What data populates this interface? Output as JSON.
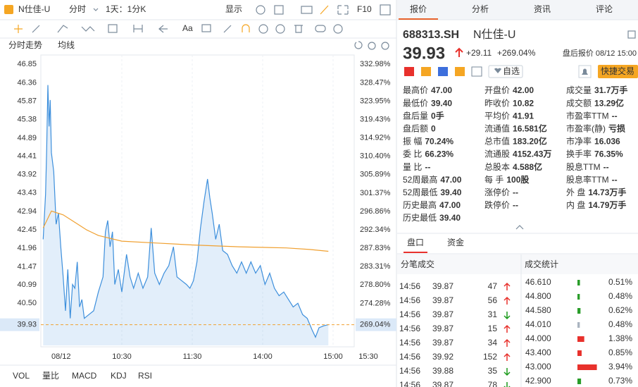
{
  "toolbar": {
    "stock": "N仕佳-U",
    "mode": "分时",
    "period": "1天：1分K",
    "display": "显示",
    "f10": "F10",
    "font": "Aa"
  },
  "chart_data": {
    "type": "line",
    "series": [
      {
        "name": "分时走势",
        "color": "#3d8fdc",
        "x": [
          -7,
          -5,
          -4,
          -3,
          -2,
          -1,
          0,
          2,
          4,
          6,
          8,
          10,
          12,
          14,
          16,
          18,
          20,
          22,
          24,
          26,
          28,
          32,
          36,
          40,
          44,
          46,
          48,
          50,
          52,
          54,
          57,
          60,
          64,
          67,
          70,
          74,
          78,
          82,
          85,
          88,
          92,
          96,
          100,
          104,
          107,
          111,
          115,
          118,
          121,
          124,
          127,
          130,
          133,
          135,
          137,
          140,
          143,
          146,
          150,
          154,
          158,
          162,
          166,
          170,
          174,
          178,
          182,
          186,
          190,
          194,
          198,
          202,
          206,
          210,
          214,
          218,
          222,
          225,
          228,
          232,
          236
        ],
        "values": [
          42.2,
          43.4,
          44.6,
          46.3,
          45.2,
          45.9,
          44.5,
          44.0,
          42.6,
          42.9,
          42.0,
          41.2,
          40.3,
          41.4,
          40.1,
          41.0,
          40.9,
          41.6,
          40.4,
          40.6,
          40.1,
          40.2,
          40.3,
          40.8,
          41.2,
          42.4,
          42.7,
          42.0,
          42.4,
          41.0,
          41.4,
          40.8,
          41.8,
          41.2,
          40.9,
          41.3,
          40.9,
          41.2,
          42.5,
          41.3,
          41.0,
          41.3,
          41.5,
          42.0,
          41.2,
          41.1,
          41.0,
          40.9,
          41.1,
          41.6,
          42.5,
          43.2,
          43.8,
          43.3,
          42.9,
          42.2,
          42.6,
          41.9,
          41.8,
          41.5,
          41.3,
          41.6,
          41.3,
          41.6,
          41.3,
          41.5,
          41.0,
          41.3,
          40.9,
          40.7,
          40.8,
          40.6,
          40.4,
          40.5,
          40.2,
          40.1,
          39.8,
          39.6,
          39.85,
          39.9,
          39.93
        ]
      },
      {
        "name": "均线",
        "color": "#f0a030",
        "x": [
          -7,
          0,
          10,
          20,
          30,
          40,
          60,
          90,
          120,
          160,
          200,
          220,
          236
        ],
        "values": [
          42.5,
          42.95,
          42.85,
          42.65,
          42.45,
          42.3,
          42.15,
          42.1,
          42.05,
          42.0,
          41.97,
          41.93,
          41.88
        ]
      }
    ],
    "xlim": [
      -9,
      270
    ],
    "xticks": [
      {
        "value": 0,
        "label": "08/12"
      },
      {
        "value": 60,
        "label": "10:30"
      },
      {
        "value": 120,
        "label": "11:30"
      },
      {
        "value": 180,
        "label": "14:00"
      },
      {
        "value": 240,
        "label": "15:00"
      },
      {
        "value": 270,
        "label": "15:30"
      }
    ],
    "ylim": [
      39.38,
      47.06
    ],
    "yticks": [
      46.85,
      46.36,
      45.87,
      45.38,
      44.89,
      44.41,
      43.92,
      43.43,
      42.94,
      42.45,
      41.96,
      41.47,
      40.99,
      {
        "value": 40.5,
        "label": "40.50"
      },
      39.93
    ],
    "y2lim": [
      263.96,
      334.94
    ],
    "y2ticks": [
      {
        "value": 332.98,
        "label": "332.98%"
      },
      {
        "value": 328.47,
        "label": "328.47%"
      },
      {
        "value": 323.95,
        "label": "323.95%"
      },
      {
        "value": 319.43,
        "label": "319.43%"
      },
      {
        "value": 314.92,
        "label": "314.92%"
      },
      {
        "value": 310.4,
        "label": "310.40%"
      },
      {
        "value": 305.89,
        "label": "305.89%"
      },
      {
        "value": 301.37,
        "label": "301.37%"
      },
      {
        "value": 296.86,
        "label": "296.86%"
      },
      {
        "value": 292.34,
        "label": "292.34%"
      },
      {
        "value": 287.83,
        "label": "287.83%"
      },
      {
        "value": 283.31,
        "label": "283.31%"
      },
      {
        "value": 278.8,
        "label": "278.80%"
      },
      {
        "value": 274.28,
        "label": "274.28%"
      },
      {
        "value": 269.04,
        "label": "269.04%"
      }
    ],
    "indicators": [
      "VOL",
      "量比",
      "MACD",
      "KDJ",
      "RSI"
    ]
  },
  "tabs": [
    "报价",
    "分析",
    "资讯",
    "评论"
  ],
  "quote": {
    "code": "688313.SH",
    "name": "N仕佳-U",
    "price": "39.93",
    "change": "+29.11",
    "change_pct": "+269.04%",
    "status": "盘后报价 08/12 15:00",
    "watch": "自选",
    "trade": "快捷交易"
  },
  "stats": [
    [
      {
        "label": "最高价",
        "value": "47.00",
        "color": "#e8312c"
      },
      {
        "label": "最低价",
        "value": "39.40",
        "color": "#e8312c"
      },
      {
        "label": "盘后量",
        "value": "0手"
      },
      {
        "label": "盘后额",
        "value": "0"
      },
      {
        "label": "振 幅",
        "value": "70.24%"
      },
      {
        "label": "委 比",
        "value": "66.23%"
      },
      {
        "label": "量 比",
        "value": "--"
      },
      {
        "label": "52周最高",
        "value": "47.00",
        "color": "#e8312c"
      },
      {
        "label": "52周最低",
        "value": "39.40",
        "color": "#e8312c"
      },
      {
        "label": "历史最高",
        "value": "47.00",
        "color": "#e8312c"
      },
      {
        "label": "历史最低",
        "value": "39.40",
        "color": "#e8312c"
      }
    ],
    [
      {
        "label": "开盘价",
        "value": "42.00",
        "color": "#e8312c"
      },
      {
        "label": "昨收价",
        "value": "10.82"
      },
      {
        "label": "平均价",
        "value": "41.91",
        "color": "#e8312c"
      },
      {
        "label": "流通值",
        "value": "16.581亿"
      },
      {
        "label": "总市值",
        "value": "183.20亿"
      },
      {
        "label": "流通股",
        "value": "4152.43万"
      },
      {
        "label": "总股本",
        "value": "4.588亿"
      },
      {
        "label": "每 手",
        "value": "100股"
      },
      {
        "label": "涨停价",
        "value": "--"
      },
      {
        "label": "跌停价",
        "value": "--"
      }
    ],
    [
      {
        "label": "成交量",
        "value": "31.7万手"
      },
      {
        "label": "成交额",
        "value": "13.29亿"
      },
      {
        "label": "市盈率TTM",
        "value": "--"
      },
      {
        "label": "市盈率(静)",
        "value": "亏损"
      },
      {
        "label": "市净率",
        "value": "16.036"
      },
      {
        "label": "换手率",
        "value": "76.35%"
      },
      {
        "label": "股息TTM",
        "value": "--"
      },
      {
        "label": "股息率TTM",
        "value": "--"
      },
      {
        "label": "外 盘",
        "value": "14.73万手",
        "color": "#e8312c"
      },
      {
        "label": "内 盘",
        "value": "14.79万手",
        "color": "#1a9a1a"
      }
    ]
  ],
  "sub_tabs": [
    "盘口",
    "资金"
  ],
  "trades": {
    "title": "分笔成交",
    "rows": [
      {
        "time": "14:56",
        "price": "39.87",
        "volume": "47",
        "dir": "up"
      },
      {
        "time": "14:56",
        "price": "39.87",
        "volume": "56",
        "dir": "up"
      },
      {
        "time": "14:56",
        "price": "39.87",
        "volume": "31",
        "dir": "down"
      },
      {
        "time": "14:56",
        "price": "39.87",
        "volume": "15",
        "dir": "up"
      },
      {
        "time": "14:56",
        "price": "39.87",
        "volume": "34",
        "dir": "up"
      },
      {
        "time": "14:56",
        "price": "39.92",
        "volume": "152",
        "dir": "up"
      },
      {
        "time": "14:56",
        "price": "39.88",
        "volume": "35",
        "dir": "down"
      },
      {
        "time": "14:56",
        "price": "39.87",
        "volume": "78",
        "dir": "down"
      }
    ]
  },
  "deal_stats": {
    "title": "成交统计",
    "prices": [
      "46.610",
      "44.800",
      "44.580",
      "44.010",
      "44.000",
      "43.400",
      "43.000",
      "42.900"
    ],
    "values": [
      0.51,
      0.48,
      0.62,
      0.48,
      1.38,
      0.85,
      3.94,
      0.73
    ],
    "value_labels": [
      "0.51%",
      "0.48%",
      "0.62%",
      "0.48%",
      "1.38%",
      "0.85%",
      "3.94%",
      "0.73%"
    ],
    "colors": [
      "#2a9d2a",
      "#2a9d2a",
      "#2a9d2a",
      "#aab4c0",
      "#e8312c",
      "#e8312c",
      "#e8312c",
      "#2a9d2a"
    ]
  }
}
